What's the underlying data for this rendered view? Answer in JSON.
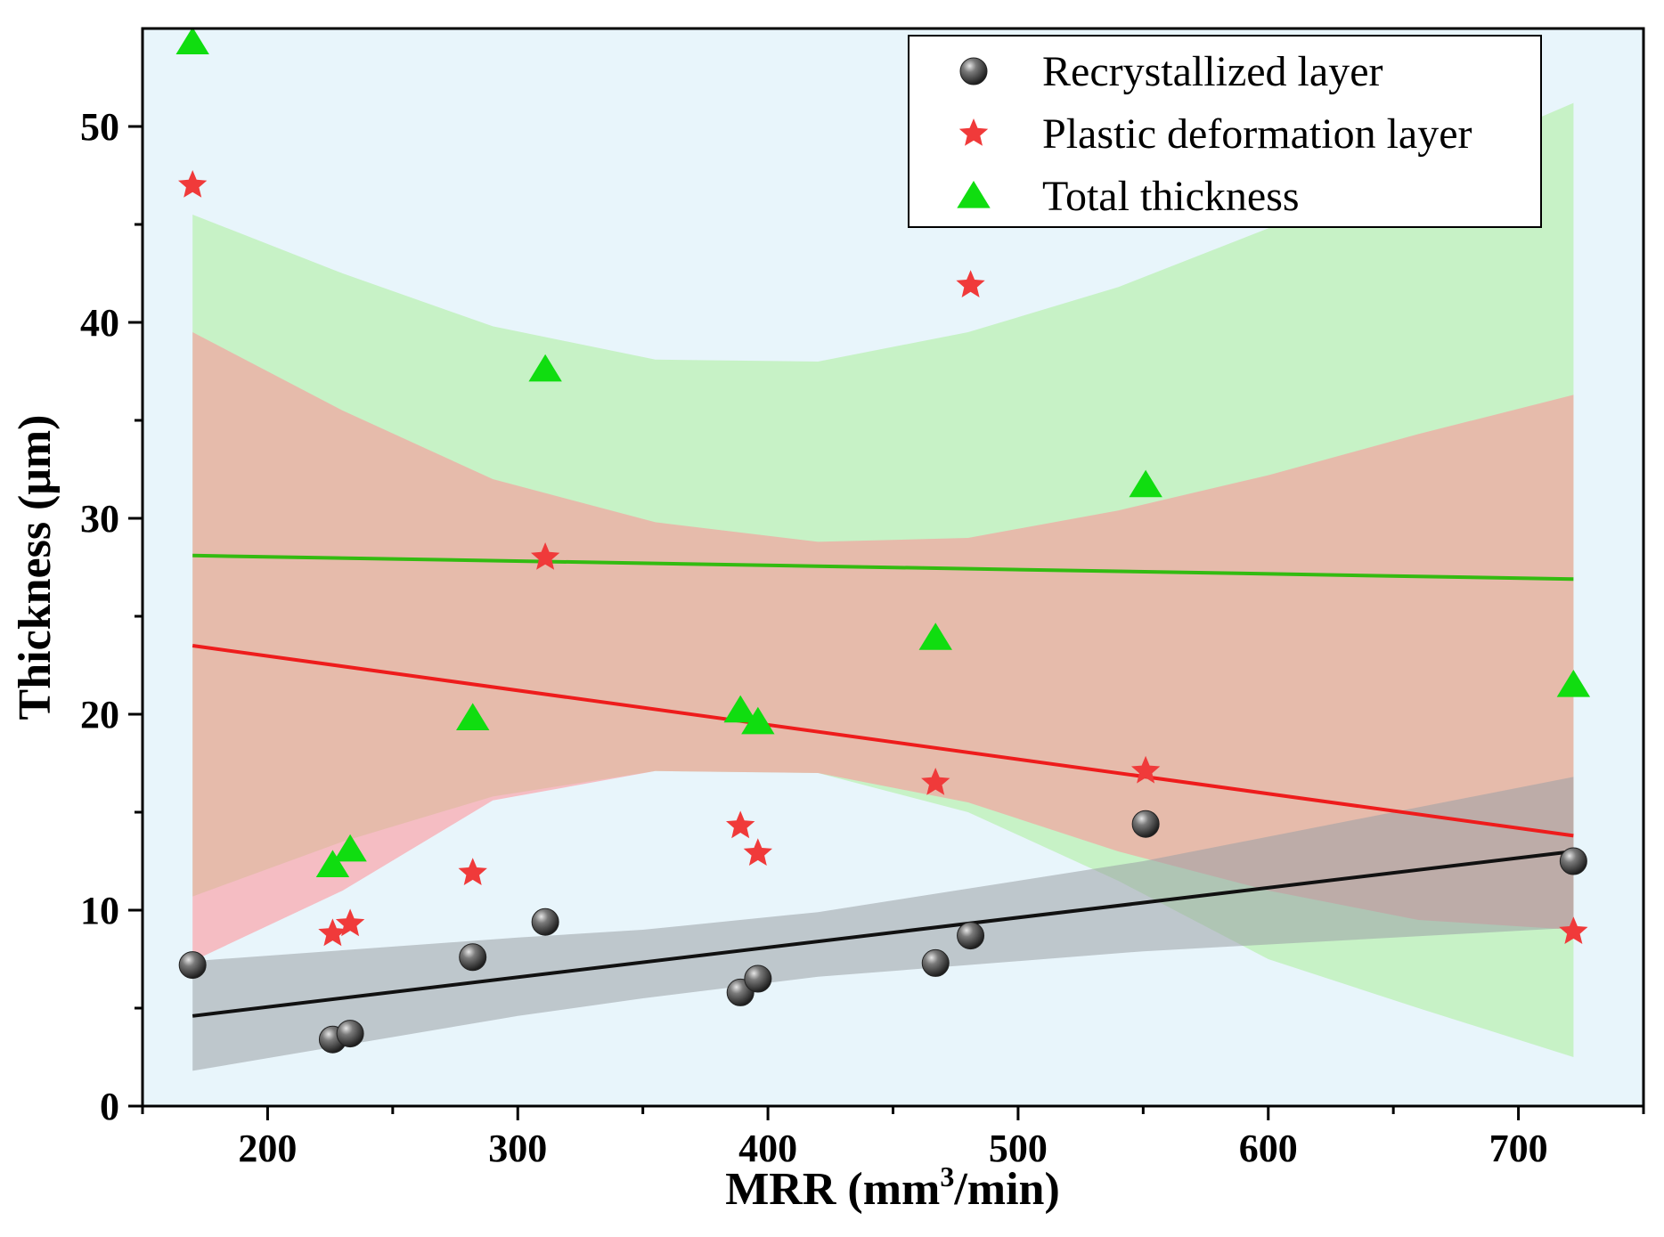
{
  "chart_data": {
    "type": "scatter",
    "title": "",
    "xlabel": "MRR (mm",
    "xlabel_sup": "3",
    "xlabel_tail": "/min)",
    "ylabel": "Thickness (μm)",
    "xlim": [
      150,
      750
    ],
    "ylim": [
      0,
      55
    ],
    "xticks": [
      200,
      300,
      400,
      500,
      600,
      700
    ],
    "yticks": [
      0,
      10,
      20,
      30,
      40,
      50
    ],
    "grid": false,
    "legend_position": "top-right",
    "background_color": "#e8f5fb",
    "series": [
      {
        "name": "Recrystallized layer",
        "marker": "sphere",
        "color": "#4a4a4a",
        "points": [
          {
            "x": 170,
            "y": 7.2
          },
          {
            "x": 226,
            "y": 3.4
          },
          {
            "x": 233,
            "y": 3.7
          },
          {
            "x": 282,
            "y": 7.6
          },
          {
            "x": 311,
            "y": 9.4
          },
          {
            "x": 389,
            "y": 5.8
          },
          {
            "x": 396,
            "y": 6.5
          },
          {
            "x": 467,
            "y": 7.3
          },
          {
            "x": 481,
            "y": 8.7
          },
          {
            "x": 551,
            "y": 14.4
          },
          {
            "x": 722,
            "y": 12.5
          }
        ],
        "fit": {
          "x": [
            170,
            722
          ],
          "y": [
            4.6,
            13.0
          ],
          "color": "#111111"
        },
        "band": {
          "color": "#9aa0a6",
          "x": [
            170,
            300,
            350,
            420,
            550,
            722
          ],
          "lower": [
            1.8,
            4.6,
            5.5,
            6.6,
            7.9,
            9.1
          ],
          "upper": [
            7.4,
            8.6,
            9.0,
            9.9,
            12.5,
            16.8
          ]
        }
      },
      {
        "name": "Plastic deformation layer",
        "marker": "star",
        "color": "#f03a3a",
        "points": [
          {
            "x": 170,
            "y": 47.0
          },
          {
            "x": 226,
            "y": 8.8
          },
          {
            "x": 233,
            "y": 9.3
          },
          {
            "x": 282,
            "y": 11.9
          },
          {
            "x": 311,
            "y": 28.0
          },
          {
            "x": 389,
            "y": 14.3
          },
          {
            "x": 396,
            "y": 12.9
          },
          {
            "x": 467,
            "y": 16.5
          },
          {
            "x": 481,
            "y": 41.9
          },
          {
            "x": 551,
            "y": 17.1
          },
          {
            "x": 722,
            "y": 8.9
          }
        ],
        "fit": {
          "x": [
            170,
            722
          ],
          "y": [
            23.5,
            13.8
          ],
          "color": "#ee1c1c"
        },
        "band": {
          "color": "#ff8e96",
          "x": [
            170,
            230,
            290,
            355,
            420,
            480,
            540,
            600,
            660,
            722
          ],
          "lower": [
            7.4,
            11.0,
            15.6,
            17.1,
            17.0,
            15.5,
            13.0,
            11.0,
            9.5,
            9.0
          ],
          "upper": [
            39.5,
            35.5,
            32.0,
            29.8,
            28.8,
            29.0,
            30.4,
            32.2,
            34.3,
            36.3
          ]
        }
      },
      {
        "name": "Total thickness",
        "marker": "triangle",
        "color": "#10dd10",
        "points": [
          {
            "x": 170,
            "y": 54.3
          },
          {
            "x": 226,
            "y": 12.3
          },
          {
            "x": 233,
            "y": 13.1
          },
          {
            "x": 282,
            "y": 19.8
          },
          {
            "x": 311,
            "y": 37.6
          },
          {
            "x": 389,
            "y": 20.2
          },
          {
            "x": 396,
            "y": 19.6
          },
          {
            "x": 467,
            "y": 23.9
          },
          {
            "x": 551,
            "y": 31.7
          },
          {
            "x": 722,
            "y": 21.5
          }
        ],
        "fit": {
          "x": [
            170,
            722
          ],
          "y": [
            28.1,
            26.9
          ],
          "color": "#33bb11"
        },
        "band": {
          "color": "#abee9a",
          "x": [
            170,
            230,
            290,
            355,
            420,
            480,
            540,
            600,
            660,
            722
          ],
          "lower": [
            10.7,
            13.5,
            15.8,
            17.1,
            17.0,
            15.0,
            11.5,
            7.5,
            5.0,
            2.5
          ],
          "upper": [
            45.5,
            42.5,
            39.8,
            38.1,
            38.0,
            39.5,
            41.8,
            44.8,
            47.8,
            51.2
          ]
        }
      }
    ]
  }
}
